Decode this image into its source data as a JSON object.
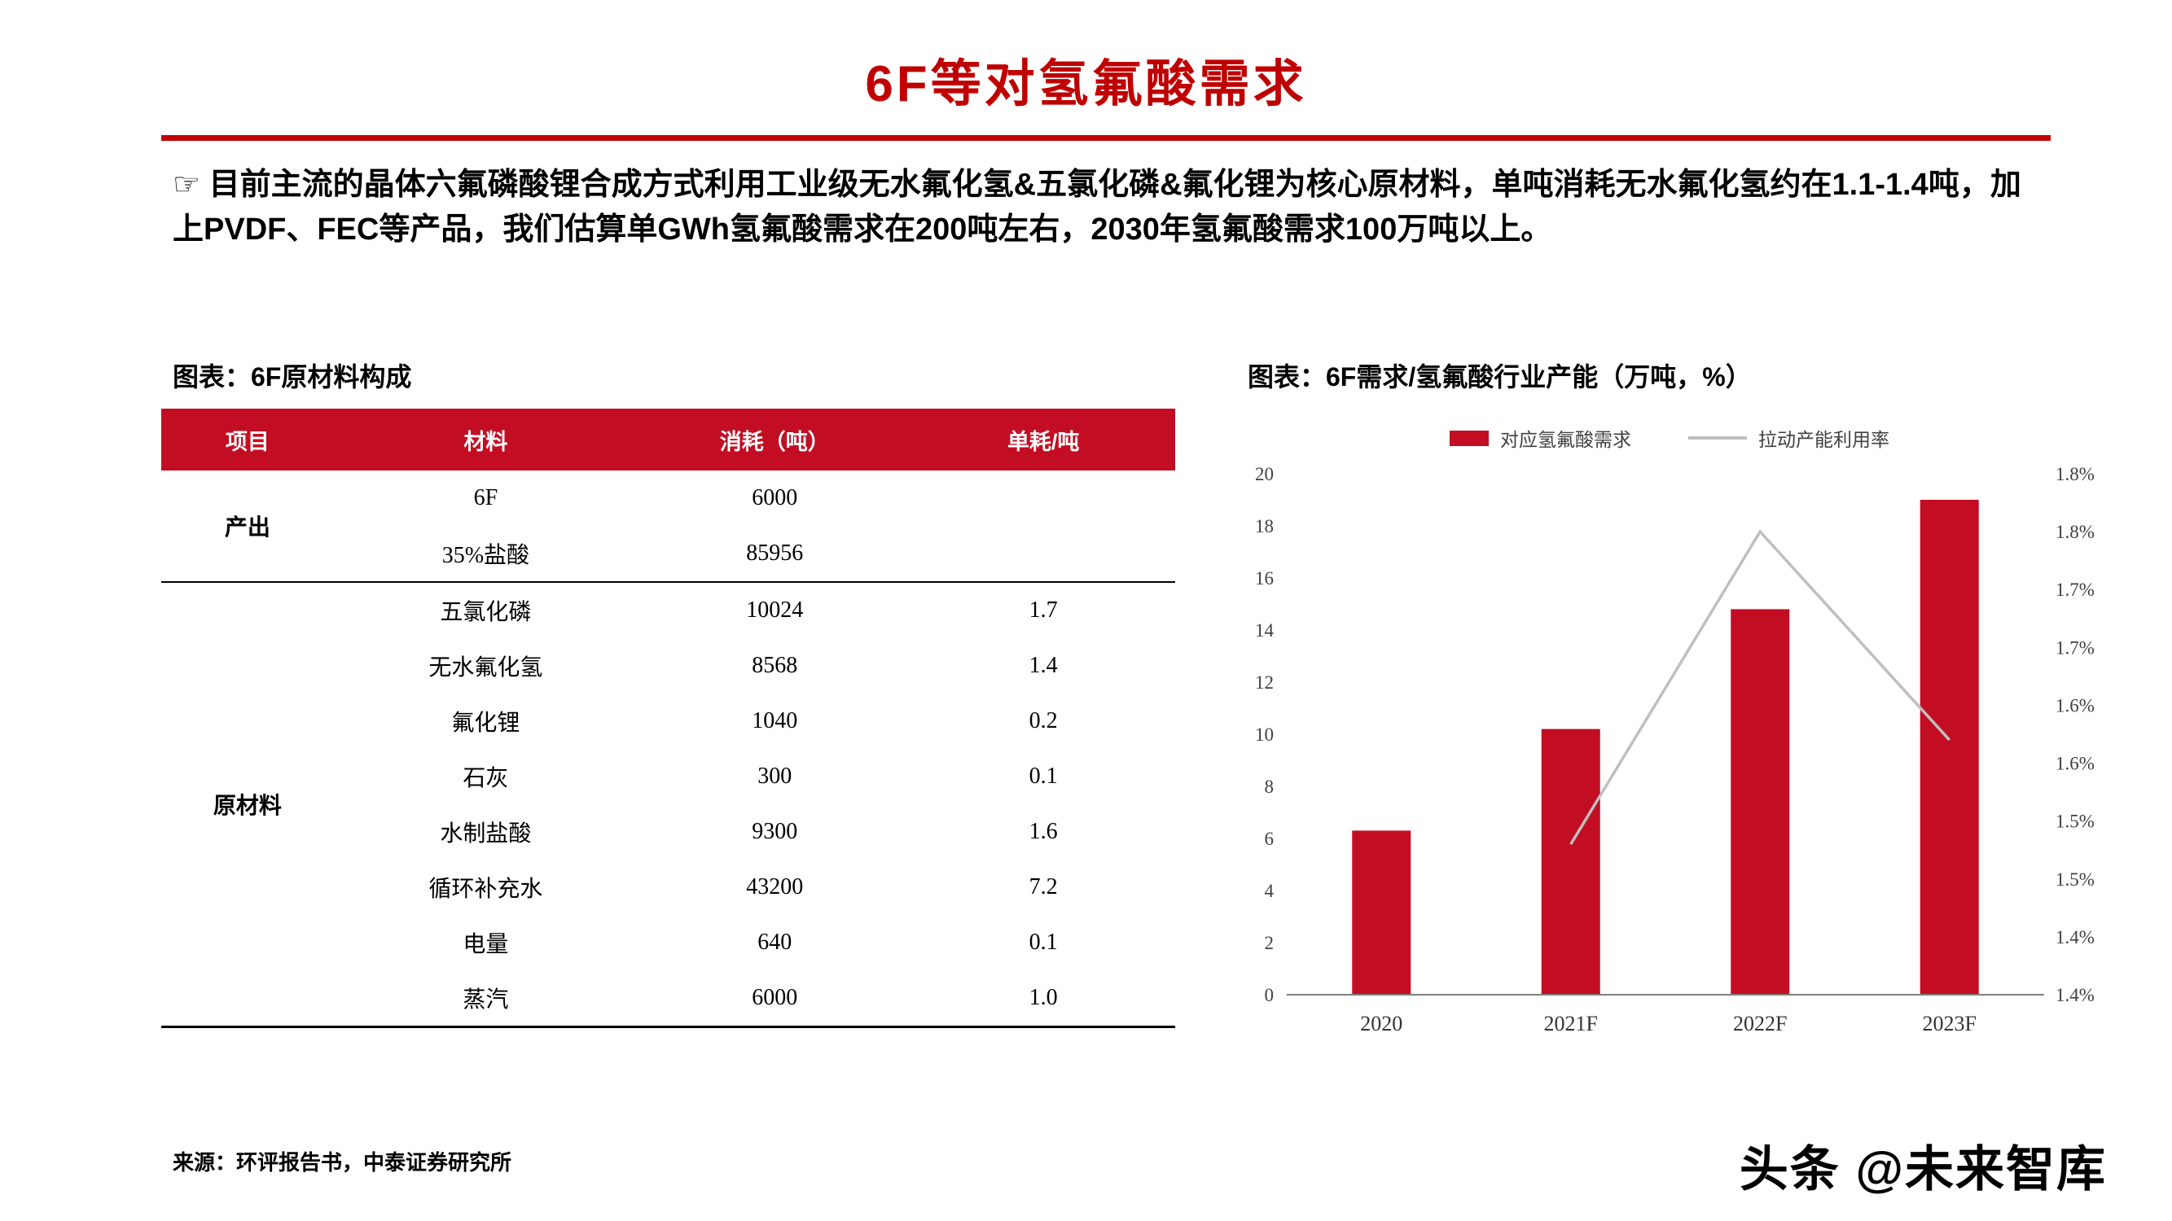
{
  "slide": {
    "title": "6F等对氢氟酸需求",
    "intro": "☞ 目前主流的晶体六氟磷酸锂合成方式利用工业级无水氟化氢&五氯化磷&氟化锂为核心原材料，单吨消耗无水氟化氢约在1.1-1.4吨，加上PVDF、FEC等产品，我们估算单GWh氢氟酸需求在200吨左右，2030年氢氟酸需求100万吨以上。",
    "source": "来源：环评报告书，中泰证券研究所",
    "watermark": "头条 @未来智库"
  },
  "colors": {
    "title_red": "#C00000",
    "accent_red": "#C30D23",
    "line_gray": "#BFBFBF"
  },
  "table": {
    "title": "图表：6F原材料构成",
    "headers": [
      "项目",
      "材料",
      "消耗（吨）",
      "单耗/吨"
    ],
    "groups": [
      {
        "label": "产出",
        "rows": [
          [
            "6F",
            "6000",
            ""
          ],
          [
            "35%盐酸",
            "85956",
            ""
          ]
        ]
      },
      {
        "label": "原材料",
        "rows": [
          [
            "五氯化磷",
            "10024",
            "1.7"
          ],
          [
            "无水氟化氢",
            "8568",
            "1.4"
          ],
          [
            "氟化锂",
            "1040",
            "0.2"
          ],
          [
            "石灰",
            "300",
            "0.1"
          ],
          [
            "水制盐酸",
            "9300",
            "1.6"
          ],
          [
            "循环补充水",
            "43200",
            "7.2"
          ],
          [
            "电量",
            "640",
            "0.1"
          ],
          [
            "蒸汽",
            "6000",
            "1.0"
          ]
        ]
      }
    ]
  },
  "chart_title": "图表：6F需求/氢氟酸行业产能（万吨，%）",
  "chart_data": {
    "type": "bar",
    "title": "6F需求/氢氟酸行业产能（万吨，%）",
    "categories": [
      "2020",
      "2021F",
      "2022F",
      "2023F"
    ],
    "series": [
      {
        "name": "对应氢氟酸需求",
        "type": "bar",
        "axis": "left",
        "values": [
          6.3,
          10.2,
          14.8,
          19.0
        ],
        "color": "#C30D23"
      },
      {
        "name": "拉动产能利用率",
        "type": "line",
        "axis": "right",
        "values": [
          null,
          1.53,
          1.8,
          1.62
        ],
        "color": "#BFBFBF"
      }
    ],
    "left_axis": {
      "min": 0,
      "max": 20,
      "tick_step": 2,
      "ticks": [
        0,
        2,
        4,
        6,
        8,
        10,
        12,
        14,
        16,
        18,
        20
      ]
    },
    "right_axis": {
      "min": 1.4,
      "max": 1.85,
      "labels_top_to_bottom": [
        "1.8%",
        "1.8%",
        "1.7%",
        "1.7%",
        "1.6%",
        "1.6%",
        "1.5%",
        "1.5%",
        "1.4%",
        "1.4%"
      ]
    },
    "legend_position": "top",
    "grid": false
  }
}
